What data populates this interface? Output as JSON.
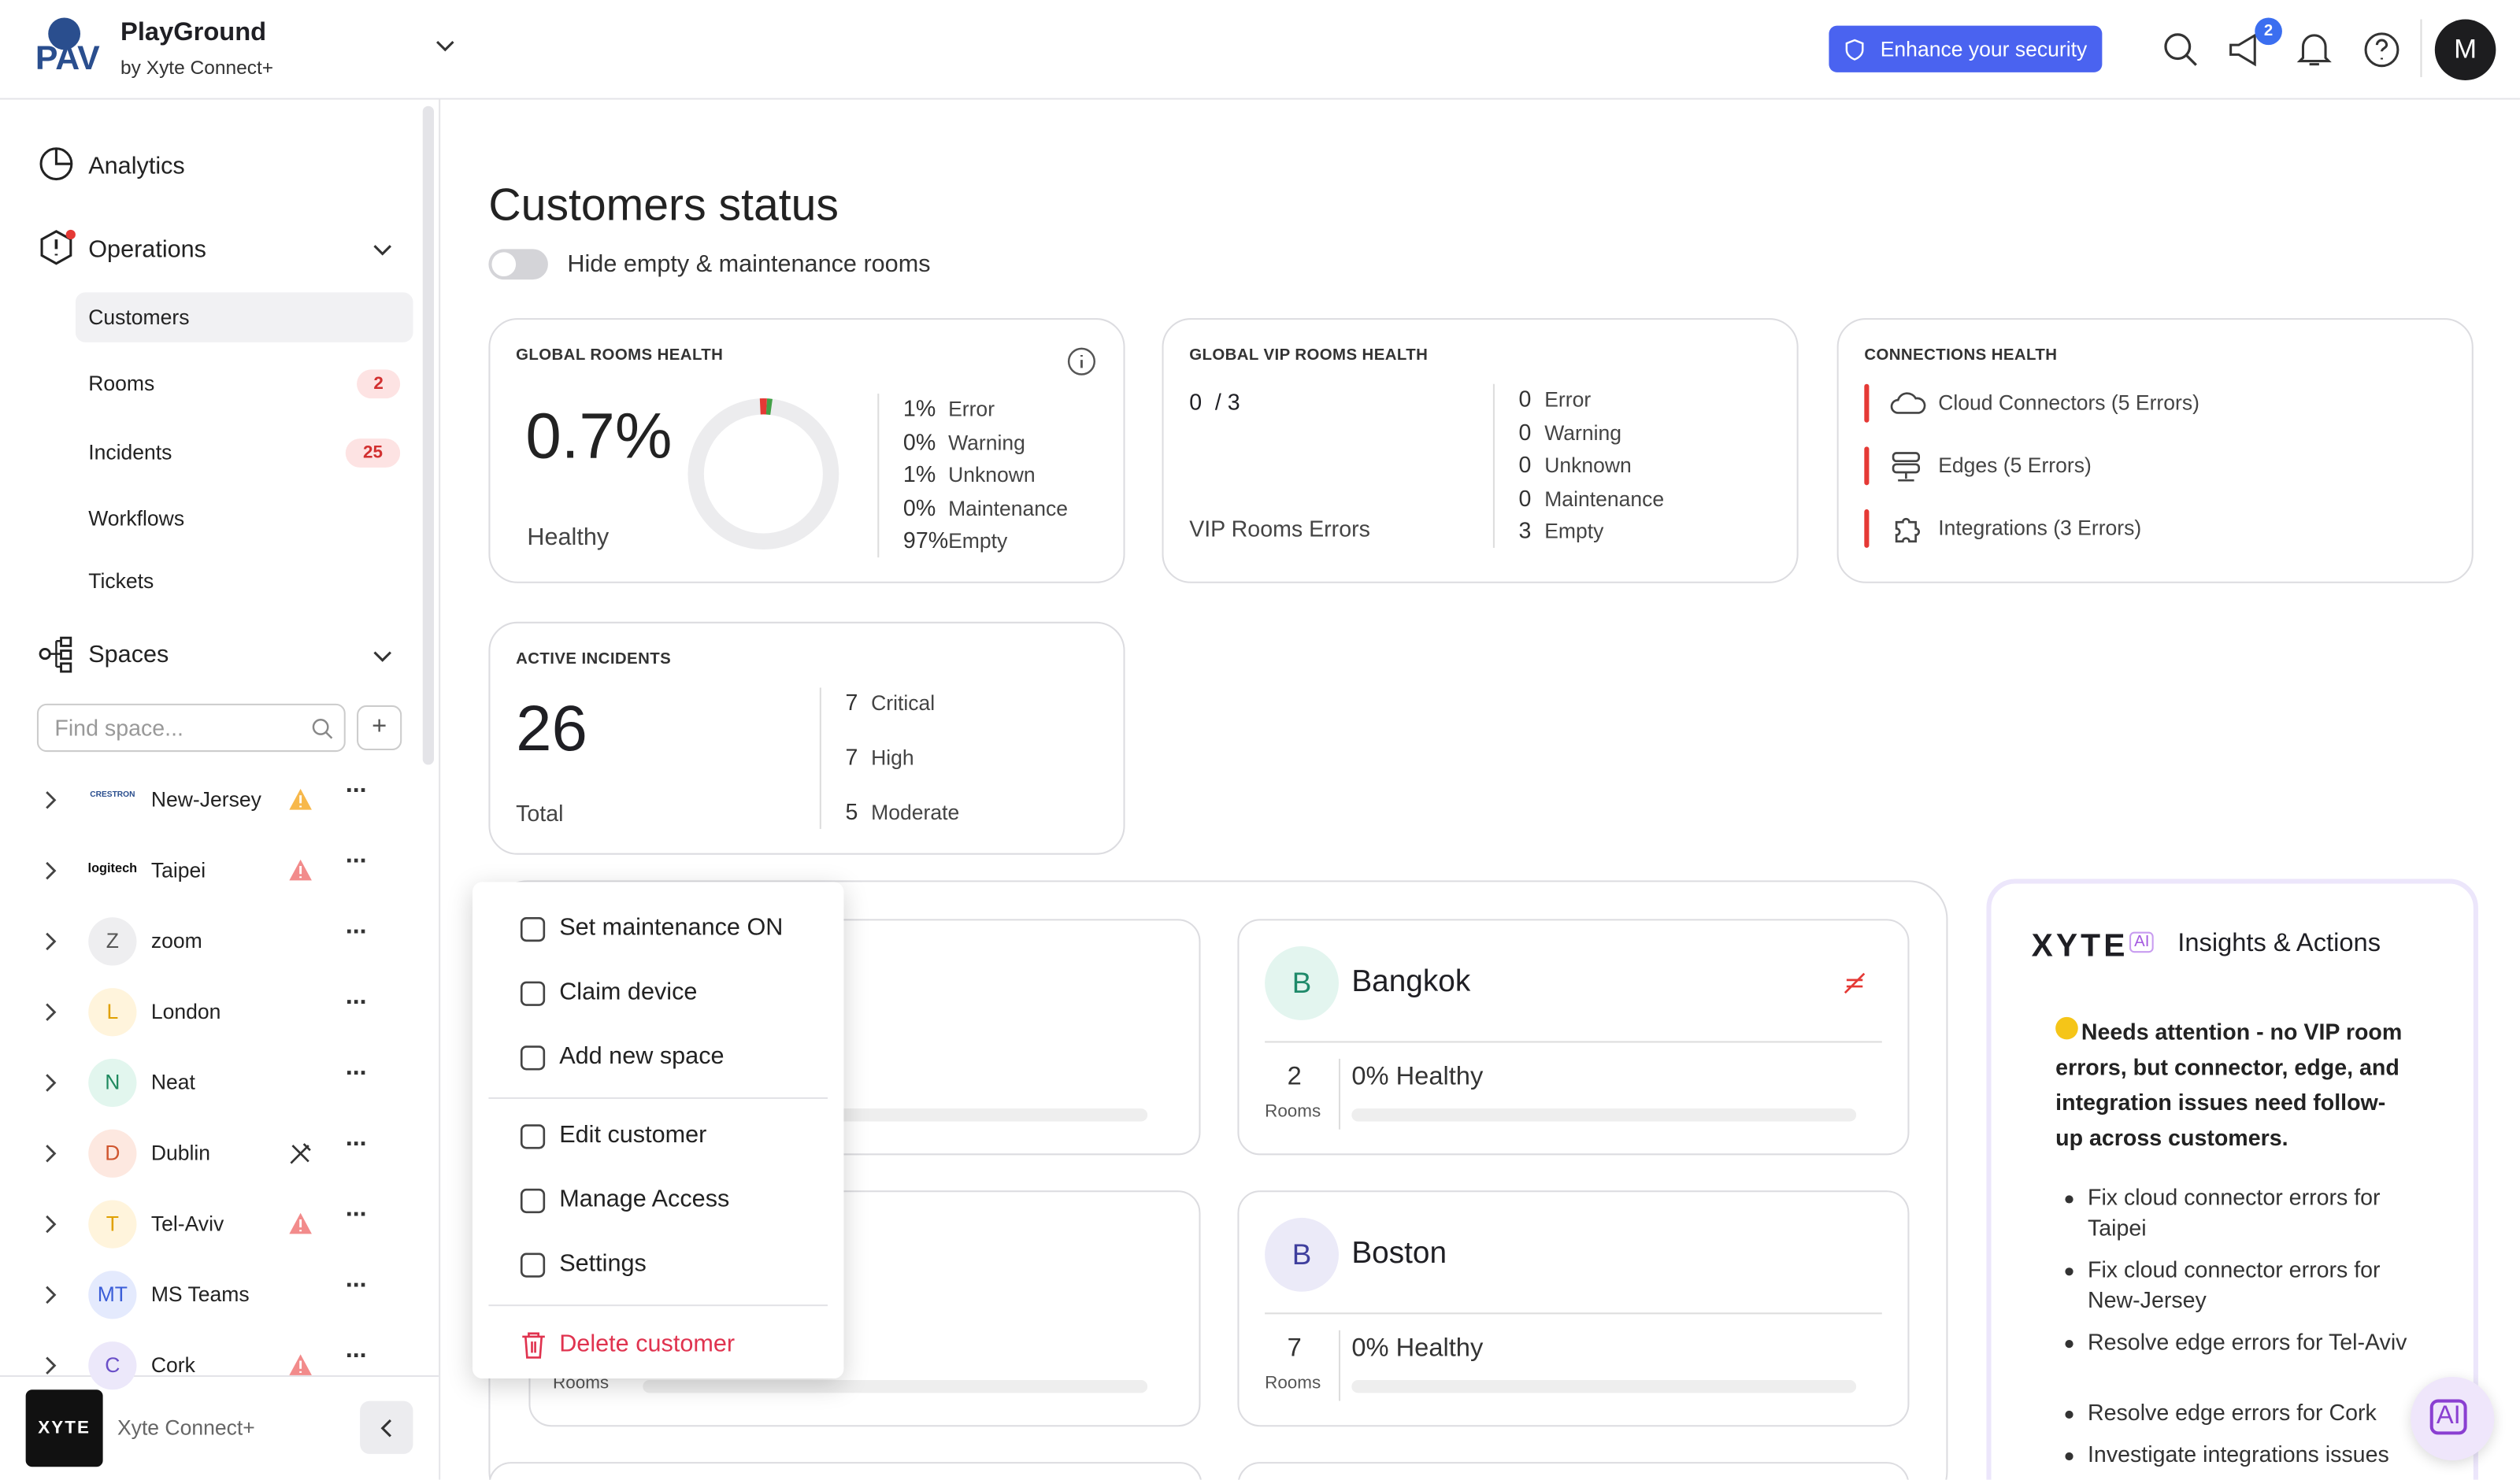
{
  "header": {
    "logo": "PAV",
    "app_name": "PlayGround",
    "app_subtitle": "by Xyte Connect+",
    "security_button": "Enhance your security",
    "announcement_badge": "2",
    "avatar": "M"
  },
  "sidebar": {
    "nav": {
      "analytics": "Analytics",
      "operations": "Operations",
      "spaces": "Spaces"
    },
    "operations_items": [
      {
        "label": "Customers"
      },
      {
        "label": "Rooms",
        "badge": "2"
      },
      {
        "label": "Incidents",
        "badge": "25"
      },
      {
        "label": "Workflows"
      },
      {
        "label": "Tickets"
      }
    ],
    "search_placeholder": "Find space...",
    "spaces": [
      {
        "avatar": "CRESTRON",
        "name": "New-Jersey"
      },
      {
        "avatar": "logitech",
        "name": "Taipei"
      },
      {
        "avatar": "Z",
        "name": "zoom"
      },
      {
        "avatar": "L",
        "name": "London"
      },
      {
        "avatar": "N",
        "name": "Neat"
      },
      {
        "avatar": "D",
        "name": "Dublin"
      },
      {
        "avatar": "T",
        "name": "Tel-Aviv"
      },
      {
        "avatar": "MT",
        "name": "MS Teams"
      },
      {
        "avatar": "C",
        "name": "Cork"
      }
    ],
    "footer_logo": "XYTE",
    "footer_label": "Xyte Connect+"
  },
  "main": {
    "title": "Customers status",
    "toggle_label": "Hide empty & maintenance rooms",
    "global_rooms_health": {
      "title": "GLOBAL ROOMS HEALTH",
      "value": "0.7%",
      "caption": "Healthy",
      "breakdown": [
        {
          "value": "1%",
          "label": "Error"
        },
        {
          "value": "0%",
          "label": "Warning"
        },
        {
          "value": "1%",
          "label": "Unknown"
        },
        {
          "value": "0%",
          "label": "Maintenance"
        },
        {
          "value": "97%",
          "label": "Empty"
        }
      ]
    },
    "global_vip_rooms_health": {
      "title": "GLOBAL VIP ROOMS HEALTH",
      "value": "0",
      "total": "/ 3",
      "caption": "VIP Rooms Errors",
      "breakdown": [
        {
          "value": "0",
          "label": "Error"
        },
        {
          "value": "0",
          "label": "Warning"
        },
        {
          "value": "0",
          "label": "Unknown"
        },
        {
          "value": "0",
          "label": "Maintenance"
        },
        {
          "value": "3",
          "label": "Empty"
        }
      ]
    },
    "connections_health": {
      "title": "CONNECTIONS HEALTH",
      "items": [
        "Cloud Connectors (5 Errors)",
        "Edges (5 Errors)",
        "Integrations (3 Errors)"
      ]
    },
    "active_incidents": {
      "title": "ACTIVE INCIDENTS",
      "value": "26",
      "caption": "Total",
      "breakdown": [
        {
          "value": "7",
          "label": "Critical"
        },
        {
          "value": "7",
          "label": "High"
        },
        {
          "value": "5",
          "label": "Moderate"
        }
      ]
    },
    "customers": [
      {
        "avatar": "B",
        "name": "Bangkok",
        "rooms": "2",
        "rooms_label": "Rooms",
        "health": "0% Healthy"
      },
      {
        "avatar": "B",
        "name": "Boston",
        "rooms": "7",
        "rooms_label": "Rooms",
        "health": "0% Healthy"
      }
    ],
    "hidden_card_rooms_label": "Rooms"
  },
  "context_menu": {
    "items": [
      "Set maintenance ON",
      "Claim device",
      "Add new space",
      "Edit customer",
      "Manage Access",
      "Settings"
    ],
    "danger_item": "Delete customer"
  },
  "insights": {
    "logo": "XYTE",
    "logo_badge": "AI",
    "title": "Insights & Actions",
    "summary": "Needs attention - no VIP room errors, but connector, edge, and integration issues need follow-up across customers.",
    "actions": [
      "Fix cloud connector errors for Taipei",
      "Fix cloud connector errors for New-Jersey",
      "Resolve edge errors for Tel-Aviv",
      "Resolve edge errors for Cork",
      "Investigate integrations issues"
    ],
    "fab": "AI"
  }
}
